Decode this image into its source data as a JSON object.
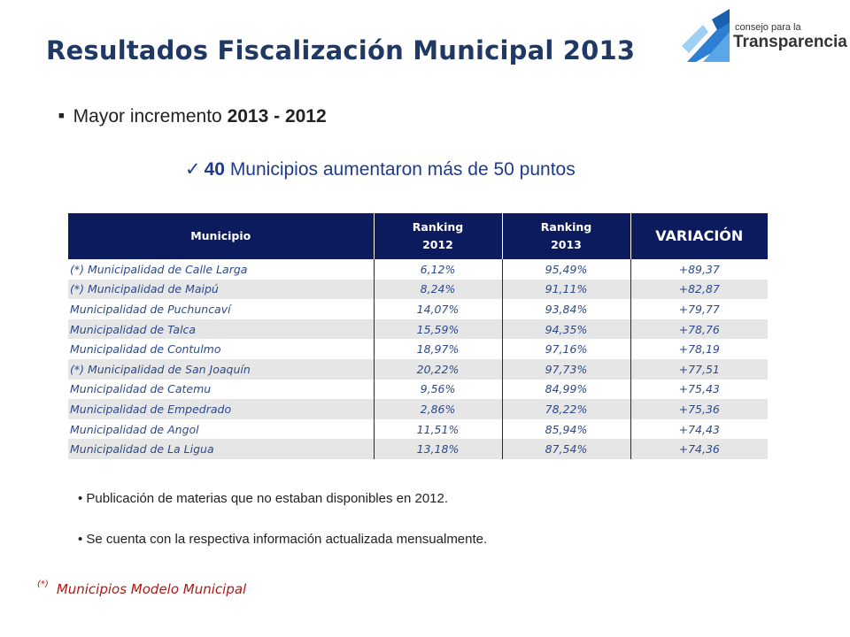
{
  "header": {
    "title": "Resultados Fiscalización Municipal 2013",
    "logo_line1": "consejo para la",
    "logo_line2": "Transparencia"
  },
  "bullet": {
    "marker": "■",
    "text": "Mayor incremento",
    "bold": "2013 - 2012"
  },
  "subbullet": {
    "check": "✓",
    "count": "40",
    "text": "Municipios aumentaron más de 50 puntos"
  },
  "table": {
    "headers": {
      "municipio": "Municipio",
      "rank2012_l1": "Ranking",
      "rank2012_l2": "2012",
      "rank2013_l1": "Ranking",
      "rank2013_l2": "2013",
      "variacion": "VARIACIÓN"
    },
    "rows": [
      [
        "(*) Municipalidad de Calle Larga",
        "6,12%",
        "95,49%",
        "+89,37"
      ],
      [
        "(*) Municipalidad de Maipú",
        "8,24%",
        "91,11%",
        "+82,87"
      ],
      [
        "Municipalidad de Puchuncaví",
        "14,07%",
        "93,84%",
        "+79,77"
      ],
      [
        "Municipalidad de Talca",
        "15,59%",
        "94,35%",
        "+78,76"
      ],
      [
        "Municipalidad de Contulmo",
        "18,97%",
        "97,16%",
        "+78,19"
      ],
      [
        "(*) Municipalidad de San Joaquín",
        "20,22%",
        "97,73%",
        "+77,51"
      ],
      [
        "Municipalidad de Catemu",
        "9,56%",
        "84,99%",
        "+75,43"
      ],
      [
        "Municipalidad de Empedrado",
        "2,86%",
        "78,22%",
        "+75,36"
      ],
      [
        "Municipalidad de Angol",
        "11,51%",
        "85,94%",
        "+74,43"
      ],
      [
        "Municipalidad de La Ligua",
        "13,18%",
        "87,54%",
        "+74,36"
      ]
    ]
  },
  "notes": [
    "• Publicación de materias que no estaban disponibles en 2012.",
    "• Se cuenta con la respectiva información actualizada mensualmente."
  ],
  "footnote": {
    "mark": "(*)",
    "text": "Municipios Modelo Municipal"
  },
  "colors": {
    "title": "#1f3864",
    "header_bg": "#0c1a5e",
    "cell_text": "#2c4a8c",
    "row_alt": "#e6e6e6",
    "footnote": "#b01818",
    "logo_blue": "#2d7fd3"
  }
}
